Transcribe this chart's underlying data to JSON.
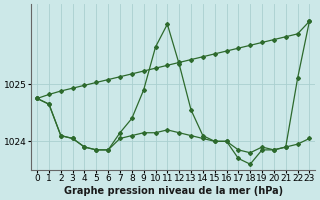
{
  "background_color": "#cce8e8",
  "grid_color": "#aacfcf",
  "line_color": "#2d6a2d",
  "xlabel": "Graphe pression niveau de la mer (hPa)",
  "xlabel_fontsize": 7,
  "tick_fontsize": 6.5,
  "xlim": [
    -0.5,
    23.5
  ],
  "ylim": [
    1023.5,
    1026.4
  ],
  "yticks": [
    1024,
    1025
  ],
  "xticks": [
    0,
    1,
    2,
    3,
    4,
    5,
    6,
    7,
    8,
    9,
    10,
    11,
    12,
    13,
    14,
    15,
    16,
    17,
    18,
    19,
    20,
    21,
    22,
    23
  ],
  "line1_x": [
    0,
    1,
    2,
    3,
    4,
    5,
    6,
    7,
    8,
    9,
    10,
    11,
    12,
    13,
    14,
    15,
    16,
    17,
    18,
    19,
    20,
    21,
    22,
    23
  ],
  "line1_y": [
    1024.75,
    1024.82,
    1024.88,
    1024.93,
    1024.98,
    1025.03,
    1025.08,
    1025.13,
    1025.18,
    1025.23,
    1025.28,
    1025.33,
    1025.38,
    1025.43,
    1025.48,
    1025.53,
    1025.58,
    1025.63,
    1025.68,
    1025.73,
    1025.78,
    1025.83,
    1025.88,
    1026.1
  ],
  "line2_x": [
    0,
    1,
    2,
    3,
    4,
    5,
    6,
    7,
    8,
    9,
    10,
    11,
    12,
    13,
    14,
    15,
    16,
    17,
    18,
    19,
    20,
    21,
    22,
    23
  ],
  "line2_y": [
    1024.75,
    1024.65,
    1024.1,
    1024.05,
    1023.9,
    1023.85,
    1023.85,
    1024.15,
    1024.4,
    1024.9,
    1025.65,
    1026.05,
    1025.35,
    1024.55,
    1024.1,
    1024.0,
    1024.0,
    1023.7,
    1023.6,
    1023.85,
    1023.85,
    1023.9,
    1025.1,
    1026.1
  ],
  "line3_x": [
    0,
    1,
    2,
    3,
    4,
    5,
    6,
    7,
    8,
    9,
    10,
    11,
    12,
    13,
    14,
    15,
    16,
    17,
    18,
    19,
    20,
    21,
    22,
    23
  ],
  "line3_y": [
    1024.75,
    1024.65,
    1024.1,
    1024.05,
    1023.9,
    1023.85,
    1023.85,
    1024.05,
    1024.1,
    1024.15,
    1024.15,
    1024.2,
    1024.15,
    1024.1,
    1024.05,
    1024.0,
    1024.0,
    1023.85,
    1023.8,
    1023.9,
    1023.85,
    1023.9,
    1023.95,
    1024.05
  ]
}
